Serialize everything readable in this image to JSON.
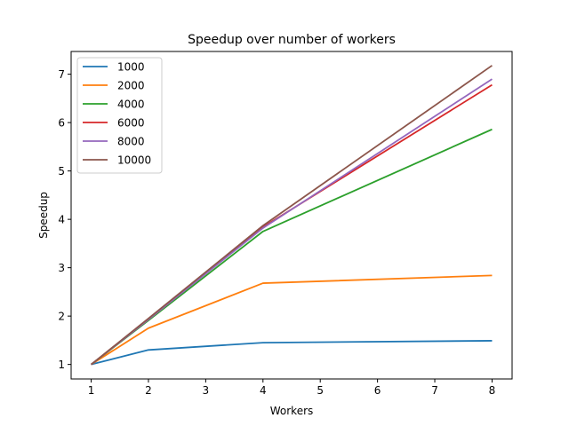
{
  "chart_data": {
    "type": "line",
    "title": "Speedup over number of workers",
    "xlabel": "Workers",
    "ylabel": "Speedup",
    "x": [
      1,
      2,
      4,
      8
    ],
    "xlim": [
      0.65,
      8.35
    ],
    "ylim": [
      0.7,
      7.47
    ],
    "xticks": [
      1,
      2,
      3,
      4,
      5,
      6,
      7,
      8
    ],
    "yticks": [
      1,
      2,
      3,
      4,
      5,
      6,
      7
    ],
    "grid": false,
    "legend_position": "upper-left",
    "series": [
      {
        "name": "1000",
        "color": "#1f77b4",
        "values": [
          1.0,
          1.3,
          1.45,
          1.49
        ]
      },
      {
        "name": "2000",
        "color": "#ff7f0e",
        "values": [
          1.0,
          1.75,
          2.68,
          2.84
        ]
      },
      {
        "name": "4000",
        "color": "#2ca02c",
        "values": [
          1.0,
          1.91,
          3.75,
          5.86
        ]
      },
      {
        "name": "6000",
        "color": "#d62728",
        "values": [
          1.0,
          1.93,
          3.84,
          6.78
        ]
      },
      {
        "name": "8000",
        "color": "#9467bd",
        "values": [
          1.0,
          1.93,
          3.82,
          6.9
        ]
      },
      {
        "name": "10000",
        "color": "#8c564b",
        "values": [
          1.0,
          1.95,
          3.87,
          7.18
        ]
      }
    ]
  }
}
